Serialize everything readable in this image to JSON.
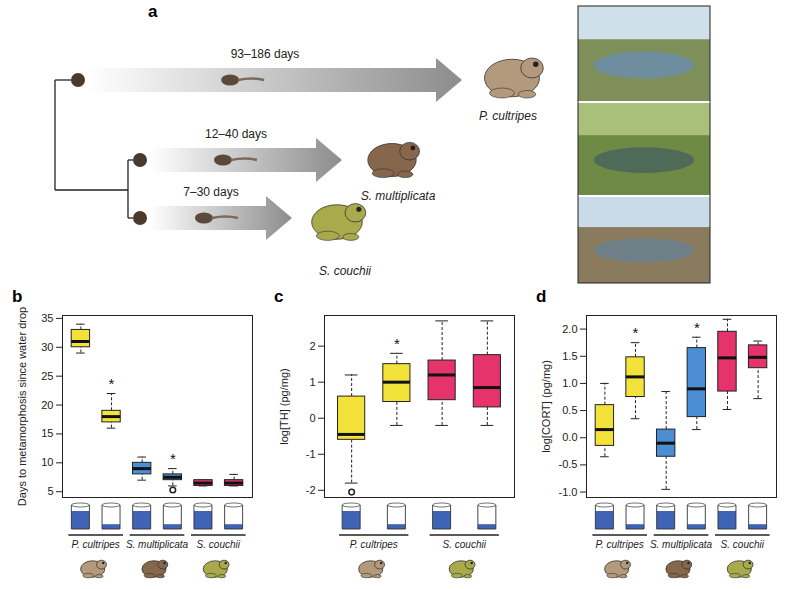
{
  "diagram": {
    "panel": "a",
    "taxa": [
      {
        "name": "P. cultripes",
        "duration": "93–186 days"
      },
      {
        "name": "S. multiplicata",
        "duration": "12–40 days"
      },
      {
        "name": "S. couchii",
        "duration": "7–30 days"
      }
    ]
  },
  "chart_data": [
    {
      "panel": "b",
      "type": "box",
      "ylabel": "Days to metamorphosis since water drop",
      "ylim": [
        4,
        35.5
      ],
      "yticks": [
        5,
        10,
        15,
        20,
        25,
        30,
        35
      ],
      "tick_labels": "y",
      "boxes": [
        {
          "group": "P. cultripes",
          "drained": false,
          "color": "#f3e23a",
          "whisker_low": 29,
          "q1": 30,
          "median": 31,
          "q3": 33,
          "whisker_high": 34,
          "outliers": []
        },
        {
          "group": "P. cultripes",
          "drained": true,
          "color": "#f3e23a",
          "whisker_low": 16,
          "q1": 17,
          "median": 18,
          "q3": 19,
          "whisker_high": 22,
          "outliers": [],
          "annotation": "*"
        },
        {
          "group": "S. multiplicata",
          "drained": false,
          "color": "#4b8ed4",
          "whisker_low": 7,
          "q1": 8,
          "median": 9,
          "q3": 10,
          "whisker_high": 11,
          "outliers": []
        },
        {
          "group": "S. multiplicata",
          "drained": true,
          "color": "#4b8ed4",
          "whisker_low": 6,
          "q1": 7,
          "median": 7.5,
          "q3": 8,
          "whisker_high": 9,
          "outliers": [
            5.3
          ],
          "annotation": "*"
        },
        {
          "group": "S. couchii",
          "drained": false,
          "color": "#e6336c",
          "whisker_low": 6,
          "q1": 6,
          "median": 6.5,
          "q3": 7,
          "whisker_high": 7,
          "outliers": []
        },
        {
          "group": "S. couchii",
          "drained": true,
          "color": "#e6336c",
          "whisker_low": 6,
          "q1": 6,
          "median": 6.5,
          "q3": 7,
          "whisker_high": 8,
          "outliers": []
        }
      ]
    },
    {
      "panel": "c",
      "type": "box",
      "ylabel": "log[TH] (pg/mg)",
      "ylim": [
        -2.2,
        2.85
      ],
      "yticks": [
        -2,
        -1,
        0,
        1,
        2
      ],
      "tick_labels": "y",
      "boxes": [
        {
          "group": "P. cultripes",
          "drained": false,
          "color": "#f3e23a",
          "whisker_low": -1.8,
          "q1": -0.6,
          "median": -0.45,
          "q3": 0.6,
          "whisker_high": 1.2,
          "outliers": [
            -2.05
          ]
        },
        {
          "group": "P. cultripes",
          "drained": true,
          "color": "#f3e23a",
          "whisker_low": -0.2,
          "q1": 0.45,
          "median": 1.0,
          "q3": 1.5,
          "whisker_high": 1.8,
          "outliers": [],
          "annotation": "*"
        },
        {
          "group": "S. couchii",
          "drained": false,
          "color": "#e6336c",
          "whisker_low": -0.2,
          "q1": 0.5,
          "median": 1.2,
          "q3": 1.6,
          "whisker_high": 2.7,
          "outliers": []
        },
        {
          "group": "S. couchii",
          "drained": true,
          "color": "#e6336c",
          "whisker_low": -0.2,
          "q1": 0.3,
          "median": 0.85,
          "q3": 1.75,
          "whisker_high": 2.7,
          "outliers": []
        }
      ]
    },
    {
      "panel": "d",
      "type": "box",
      "ylabel": "log[CORT] (pg/mg)",
      "ylim": [
        -1.1,
        2.25
      ],
      "yticks": [
        {
          "value": -1,
          "label": "-1.0"
        },
        -0.5,
        {
          "value": 0,
          "label": "0.0"
        },
        0.5,
        {
          "value": 1,
          "label": "1.0"
        },
        1.5,
        {
          "value": 2,
          "label": "2.0"
        }
      ],
      "tick_labels": "y",
      "boxes": [
        {
          "group": "P. cultripes",
          "drained": false,
          "color": "#f3e23a",
          "whisker_low": -0.35,
          "q1": -0.15,
          "median": 0.15,
          "q3": 0.6,
          "whisker_high": 1.0,
          "outliers": []
        },
        {
          "group": "P. cultripes",
          "drained": true,
          "color": "#f3e23a",
          "whisker_low": 0.35,
          "q1": 0.75,
          "median": 1.12,
          "q3": 1.48,
          "whisker_high": 1.75,
          "outliers": [],
          "annotation": "*"
        },
        {
          "group": "S. multiplicata",
          "drained": false,
          "color": "#4b8ed4",
          "whisker_low": -0.95,
          "q1": -0.35,
          "median": -0.1,
          "q3": 0.15,
          "whisker_high": 0.85,
          "outliers": []
        },
        {
          "group": "S. multiplicata",
          "drained": true,
          "color": "#4b8ed4",
          "whisker_low": 0.15,
          "q1": 0.38,
          "median": 0.9,
          "q3": 1.65,
          "whisker_high": 1.85,
          "outliers": [],
          "annotation": "*"
        },
        {
          "group": "S. couchii",
          "drained": false,
          "color": "#e6336c",
          "whisker_low": 0.52,
          "q1": 0.85,
          "median": 1.47,
          "q3": 1.95,
          "whisker_high": 2.18,
          "outliers": []
        },
        {
          "group": "S. couchii",
          "drained": true,
          "color": "#e6336c",
          "whisker_low": 0.72,
          "q1": 1.28,
          "median": 1.48,
          "q3": 1.7,
          "whisker_high": 1.78,
          "outliers": []
        }
      ]
    }
  ]
}
